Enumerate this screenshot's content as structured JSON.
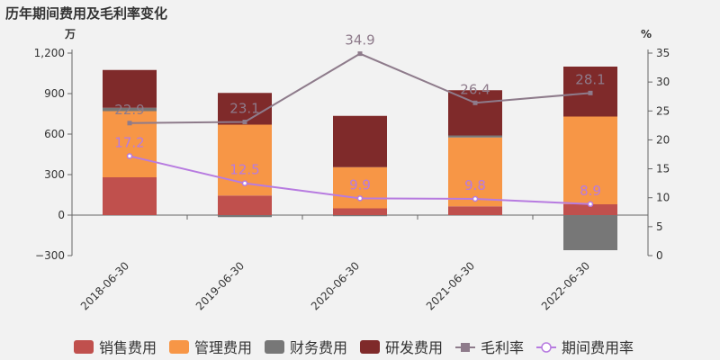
{
  "chart_data": {
    "type": "bar",
    "title": "历年期间费用及毛利率变化",
    "categories": [
      "2018-06-30",
      "2019-06-30",
      "2020-06-30",
      "2021-06-30",
      "2022-06-30"
    ],
    "y_left": {
      "unit": "万",
      "lim": [
        -300,
        1200
      ],
      "ticks": [
        -300,
        0,
        300,
        600,
        900,
        1200
      ],
      "tick_labels": [
        "−300",
        "0",
        "300",
        "600",
        "900",
        "1,200"
      ]
    },
    "y_right": {
      "unit": "%",
      "lim": [
        0,
        35
      ],
      "ticks": [
        0,
        5,
        10,
        15,
        20,
        25,
        30,
        35
      ],
      "tick_labels": [
        "0",
        "5",
        "10",
        "15",
        "20",
        "25",
        "30",
        "35"
      ]
    },
    "grid": false,
    "legend_position": "bottom",
    "bar_series": [
      {
        "name": "销售费用",
        "color": "#c0504d",
        "values": [
          280,
          145,
          50,
          65,
          80
        ]
      },
      {
        "name": "管理费用",
        "color": "#f79646",
        "values": [
          490,
          525,
          305,
          510,
          650
        ]
      },
      {
        "name": "财务费用",
        "color": "#777777",
        "values": [
          25,
          -15,
          -8,
          15,
          -260
        ]
      },
      {
        "name": "研发费用",
        "color": "#7f2a2a",
        "values": [
          280,
          235,
          380,
          335,
          370
        ]
      }
    ],
    "line_series": [
      {
        "name": "毛利率",
        "color": "#8e7b8b",
        "marker": "square",
        "values": [
          22.9,
          23.1,
          34.9,
          26.4,
          28.1
        ],
        "labels": [
          "22.9",
          "23.1",
          "34.9",
          "26.4",
          "28.1"
        ]
      },
      {
        "name": "期间费用率",
        "color": "#b77be0",
        "marker": "circle",
        "values": [
          17.2,
          12.5,
          9.9,
          9.8,
          8.9
        ],
        "labels": [
          "17.2",
          "12.5",
          "9.9",
          "9.8",
          "8.9"
        ]
      }
    ]
  }
}
